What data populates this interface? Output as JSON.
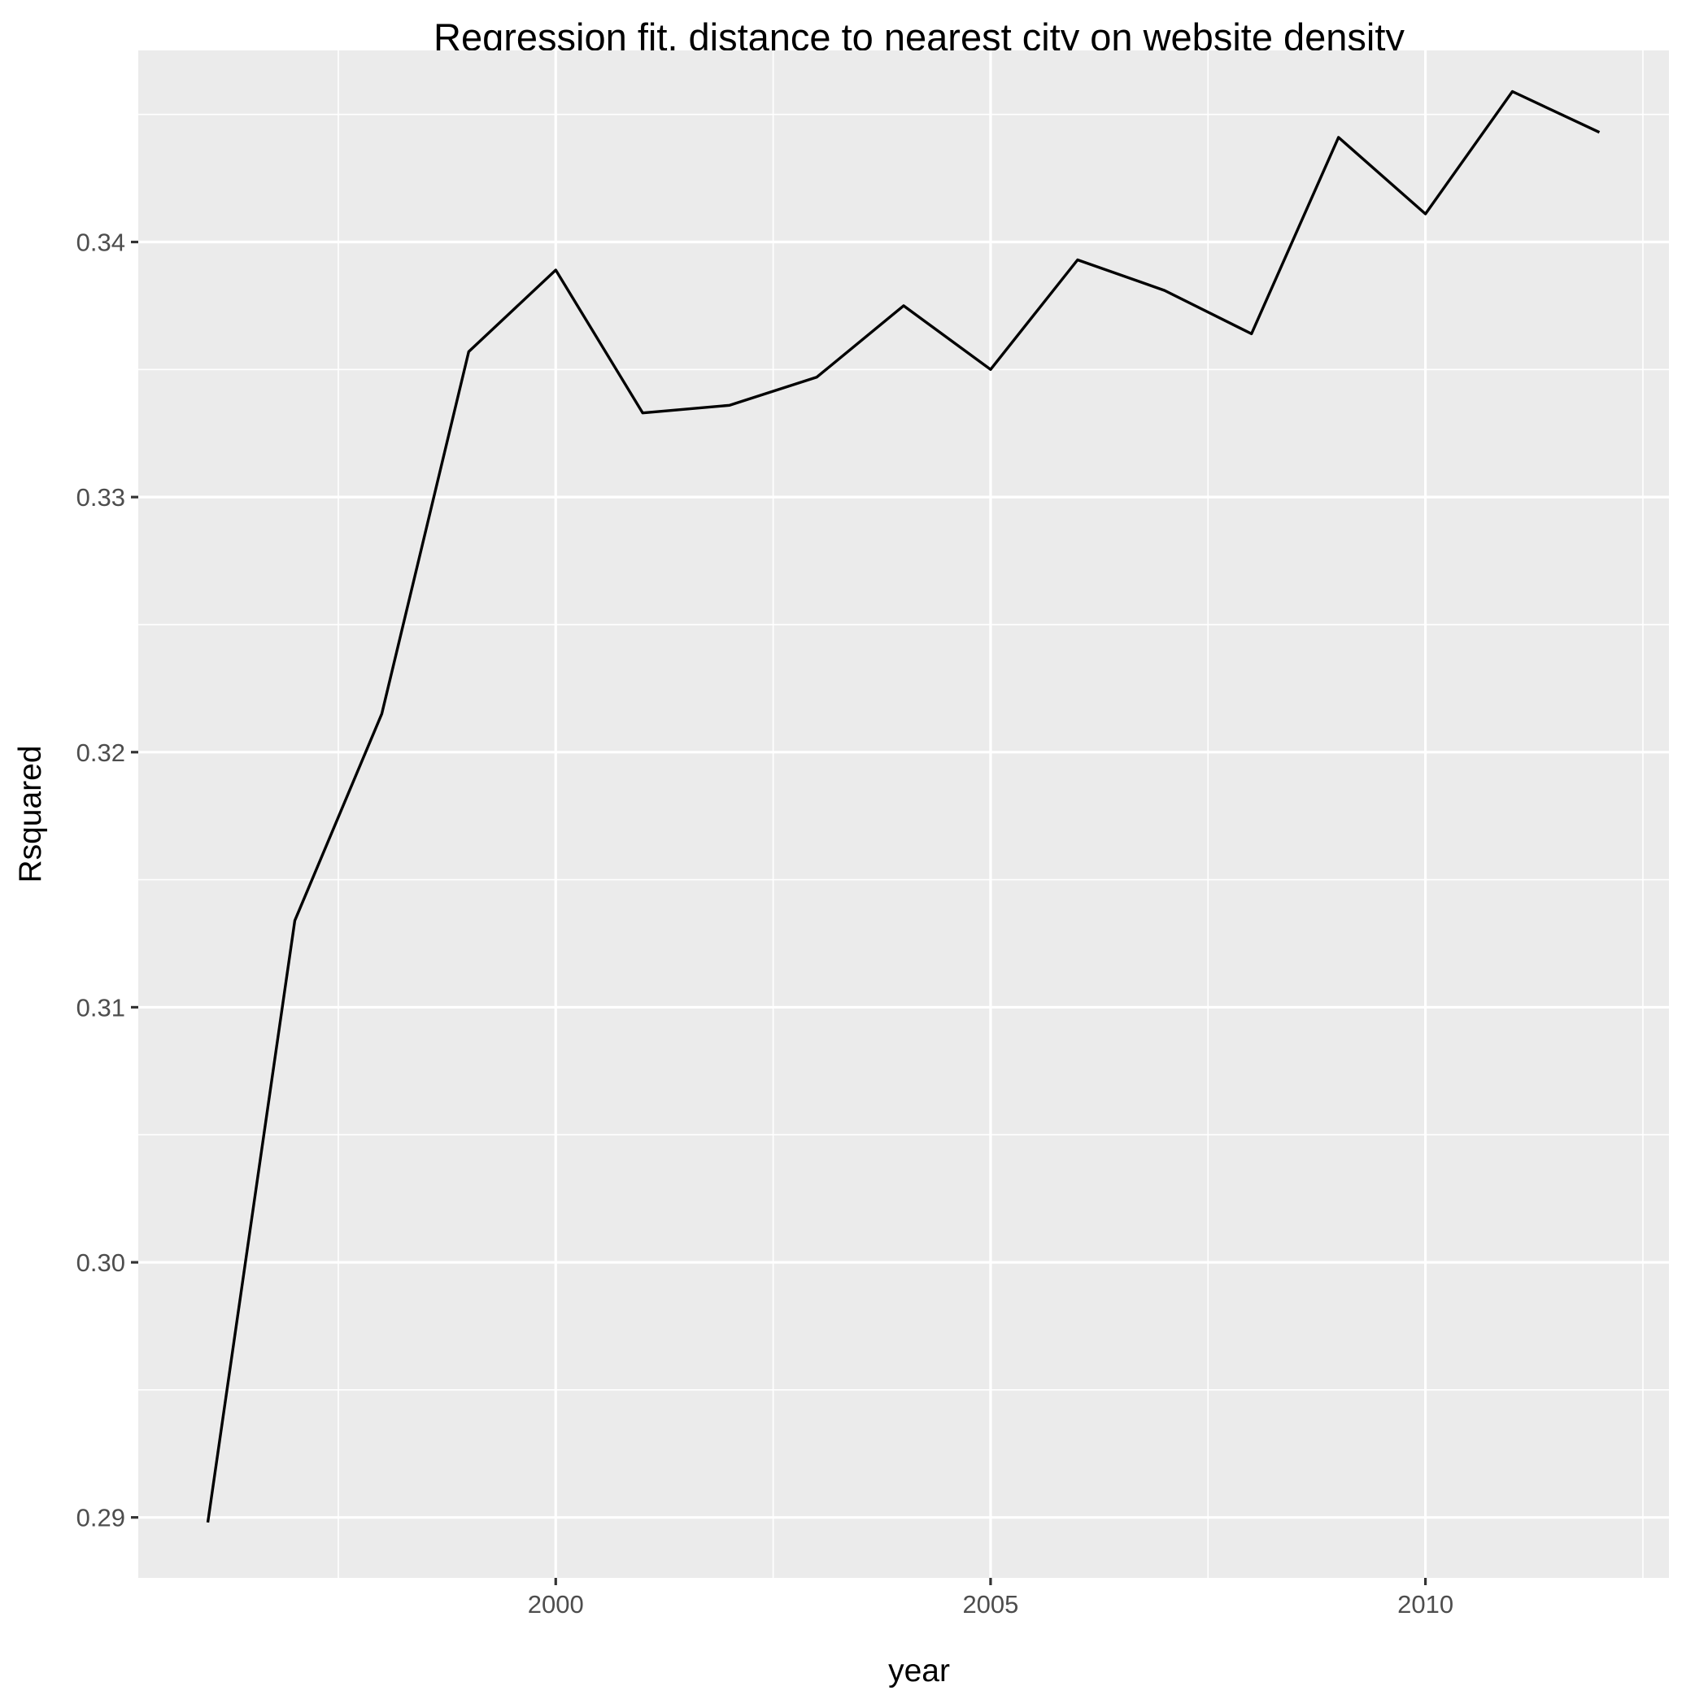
{
  "chart_data": {
    "type": "line",
    "title": "Regression fit, distance to nearest city on website density",
    "xlabel": "year",
    "ylabel": "Rsquared",
    "x": [
      1996,
      1997,
      1998,
      1999,
      2000,
      2001,
      2002,
      2003,
      2004,
      2005,
      2006,
      2007,
      2008,
      2009,
      2010,
      2011,
      2012
    ],
    "series": [
      {
        "values": [
          0.2898,
          0.3134,
          0.3215,
          0.3357,
          0.3389,
          0.3333,
          0.3336,
          0.3347,
          0.3375,
          0.335,
          0.3393,
          0.3381,
          0.3364,
          0.3441,
          0.3411,
          0.3459,
          0.3443
        ],
        "color": "#000000"
      }
    ],
    "xlim": [
      1995.2,
      2012.8
    ],
    "ylim": [
      0.28763,
      0.34751
    ],
    "x_ticks": [
      2000,
      2005,
      2010
    ],
    "x_tick_labels": [
      "2000",
      "2005",
      "2010"
    ],
    "x_minor_ticks": [
      1997.5,
      2002.5,
      2007.5,
      2012.5
    ],
    "y_ticks": [
      0.29,
      0.3,
      0.31,
      0.32,
      0.33,
      0.34
    ],
    "y_tick_labels": [
      "0.29",
      "0.30",
      "0.31",
      "0.32",
      "0.33",
      "0.34"
    ],
    "y_minor_ticks": [
      0.295,
      0.305,
      0.315,
      0.325,
      0.335,
      0.345
    ],
    "grid": true,
    "legend": "none",
    "colors": {
      "panel_background": "#ebebeb",
      "grid": "#ffffff",
      "tick_label": "#4d4d4d",
      "tick_mark": "#333333",
      "line": "#000000"
    }
  }
}
